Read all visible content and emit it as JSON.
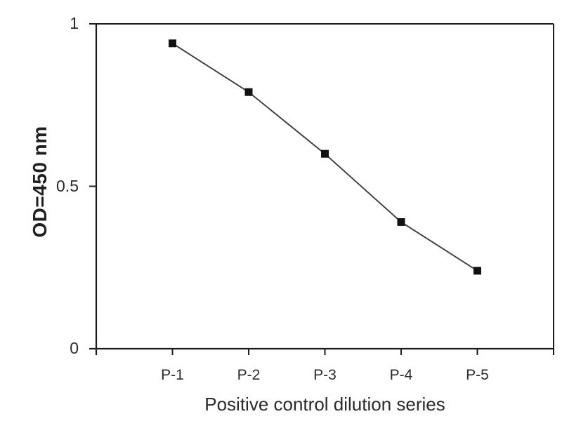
{
  "chart_data": {
    "type": "line",
    "categories": [
      "P-1",
      "P-2",
      "P-3",
      "P-4",
      "P-5"
    ],
    "values": [
      0.94,
      0.79,
      0.6,
      0.39,
      0.24
    ],
    "xlabel": "Positive control dilution series",
    "ylabel": "OD=450 nm",
    "ylim": [
      0,
      1
    ],
    "yticks": [
      0,
      0.5,
      1
    ],
    "ytick_labels": [
      "0",
      "0.5",
      "1"
    ],
    "marker": "square",
    "marker_size_px": 11,
    "marker_color": "#111111",
    "line_color": "#3d3d3d",
    "axis_color": "#1c1c1c",
    "text_color": "#2a2a2a",
    "background_color": "#ffffff",
    "grid": false,
    "legend": false,
    "frame": "closed-top-right"
  }
}
